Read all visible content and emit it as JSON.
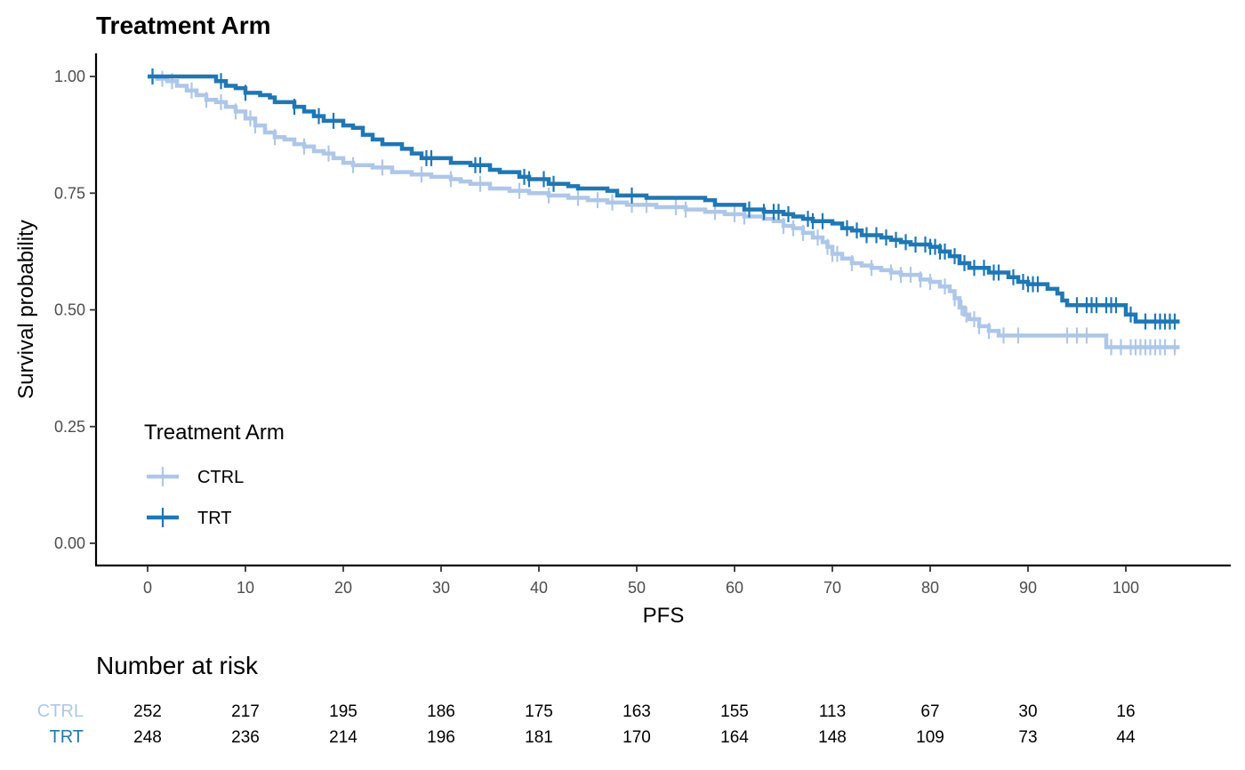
{
  "chart_data": {
    "type": "line",
    "subtype": "kaplan-meier",
    "title": "Treatment Arm",
    "xlabel": "PFS",
    "ylabel": "Survival probability",
    "xlim": [
      -5,
      111
    ],
    "ylim": [
      -0.05,
      1.05
    ],
    "x_ticks": [
      0,
      10,
      20,
      30,
      40,
      50,
      60,
      70,
      80,
      90,
      100
    ],
    "x_tick_labels": [
      "0",
      "10",
      "20",
      "30",
      "40",
      "50",
      "60",
      "70",
      "80",
      "90",
      "100"
    ],
    "y_ticks": [
      0,
      0.25,
      0.5,
      0.75,
      1.0
    ],
    "y_tick_labels": [
      "0.00",
      "0.25",
      "0.50",
      "0.75",
      "1.00"
    ],
    "grid": false,
    "legend": {
      "title": "Treatment Arm",
      "placement": "bottom-left inside plot",
      "entries": [
        "CTRL",
        "TRT"
      ]
    },
    "series": [
      {
        "name": "CTRL",
        "color": "#aec7e8",
        "steps": [
          [
            0,
            1.0
          ],
          [
            1,
            0.995
          ],
          [
            2,
            0.99
          ],
          [
            3,
            0.98
          ],
          [
            4,
            0.97
          ],
          [
            5,
            0.96
          ],
          [
            6,
            0.95
          ],
          [
            7,
            0.945
          ],
          [
            8,
            0.935
          ],
          [
            9,
            0.925
          ],
          [
            10,
            0.91
          ],
          [
            11,
            0.895
          ],
          [
            12,
            0.88
          ],
          [
            13,
            0.87
          ],
          [
            14,
            0.865
          ],
          [
            15,
            0.855
          ],
          [
            16,
            0.85
          ],
          [
            17,
            0.84
          ],
          [
            18,
            0.835
          ],
          [
            19,
            0.825
          ],
          [
            20,
            0.815
          ],
          [
            21,
            0.81
          ],
          [
            23,
            0.805
          ],
          [
            25,
            0.795
          ],
          [
            27,
            0.79
          ],
          [
            29,
            0.785
          ],
          [
            31,
            0.78
          ],
          [
            32,
            0.775
          ],
          [
            33,
            0.77
          ],
          [
            35,
            0.76
          ],
          [
            37,
            0.755
          ],
          [
            39,
            0.75
          ],
          [
            41,
            0.745
          ],
          [
            43,
            0.74
          ],
          [
            45,
            0.735
          ],
          [
            47,
            0.73
          ],
          [
            49,
            0.725
          ],
          [
            52,
            0.72
          ],
          [
            55,
            0.715
          ],
          [
            57,
            0.71
          ],
          [
            59,
            0.705
          ],
          [
            61,
            0.7
          ],
          [
            63,
            0.695
          ],
          [
            64,
            0.69
          ],
          [
            65,
            0.68
          ],
          [
            66,
            0.675
          ],
          [
            67,
            0.665
          ],
          [
            68,
            0.655
          ],
          [
            69,
            0.645
          ],
          [
            69.5,
            0.635
          ],
          [
            70,
            0.62
          ],
          [
            71,
            0.61
          ],
          [
            72,
            0.6
          ],
          [
            73,
            0.595
          ],
          [
            74,
            0.59
          ],
          [
            75,
            0.585
          ],
          [
            76,
            0.58
          ],
          [
            77,
            0.575
          ],
          [
            79,
            0.565
          ],
          [
            80,
            0.56
          ],
          [
            81,
            0.55
          ],
          [
            82,
            0.54
          ],
          [
            82.5,
            0.525
          ],
          [
            83,
            0.505
          ],
          [
            83.5,
            0.49
          ],
          [
            84,
            0.48
          ],
          [
            85,
            0.465
          ],
          [
            86,
            0.455
          ],
          [
            87,
            0.445
          ],
          [
            98,
            0.42
          ],
          [
            105.5,
            0.42
          ]
        ],
        "censored": [
          0.5,
          1.5,
          2.5,
          4.5,
          6,
          7.5,
          9,
          10.5,
          11,
          13,
          16,
          18.5,
          21,
          24,
          28,
          31,
          34,
          38,
          41,
          44,
          46,
          47.5,
          49.5,
          51,
          54,
          55,
          58,
          60,
          61,
          65,
          66,
          67,
          68.5,
          69.5,
          70,
          70.5,
          72,
          74,
          76,
          77,
          78,
          79,
          80,
          81.5,
          82.5,
          83.2,
          83.7,
          84.5,
          85,
          86,
          87.5,
          89,
          94,
          95,
          96,
          98.5,
          99.5,
          100.5,
          101,
          101.5,
          102,
          102.5,
          103,
          103.5,
          104,
          105
        ]
      },
      {
        "name": "TRT",
        "color": "#1f77b4",
        "steps": [
          [
            0,
            1.0
          ],
          [
            7,
            0.99
          ],
          [
            8,
            0.98
          ],
          [
            9,
            0.975
          ],
          [
            10,
            0.965
          ],
          [
            11.5,
            0.96
          ],
          [
            12.5,
            0.955
          ],
          [
            13,
            0.945
          ],
          [
            15,
            0.935
          ],
          [
            16,
            0.925
          ],
          [
            17,
            0.915
          ],
          [
            18,
            0.905
          ],
          [
            20,
            0.895
          ],
          [
            21,
            0.89
          ],
          [
            22,
            0.875
          ],
          [
            23,
            0.865
          ],
          [
            24,
            0.855
          ],
          [
            26,
            0.845
          ],
          [
            27,
            0.835
          ],
          [
            28,
            0.825
          ],
          [
            31,
            0.815
          ],
          [
            33,
            0.81
          ],
          [
            35,
            0.8
          ],
          [
            36,
            0.795
          ],
          [
            38,
            0.785
          ],
          [
            39,
            0.78
          ],
          [
            41,
            0.77
          ],
          [
            43,
            0.765
          ],
          [
            44,
            0.76
          ],
          [
            47,
            0.755
          ],
          [
            48,
            0.745
          ],
          [
            51,
            0.74
          ],
          [
            57,
            0.735
          ],
          [
            58,
            0.725
          ],
          [
            61,
            0.715
          ],
          [
            63,
            0.71
          ],
          [
            65,
            0.705
          ],
          [
            66,
            0.7
          ],
          [
            67,
            0.695
          ],
          [
            68,
            0.69
          ],
          [
            70,
            0.685
          ],
          [
            71,
            0.675
          ],
          [
            72,
            0.67
          ],
          [
            73,
            0.66
          ],
          [
            75,
            0.655
          ],
          [
            76,
            0.65
          ],
          [
            77,
            0.645
          ],
          [
            78,
            0.64
          ],
          [
            80,
            0.635
          ],
          [
            81,
            0.625
          ],
          [
            82,
            0.615
          ],
          [
            83,
            0.6
          ],
          [
            84,
            0.59
          ],
          [
            86,
            0.58
          ],
          [
            88,
            0.57
          ],
          [
            89,
            0.56
          ],
          [
            90,
            0.555
          ],
          [
            92,
            0.545
          ],
          [
            93,
            0.535
          ],
          [
            93.5,
            0.52
          ],
          [
            94,
            0.51
          ],
          [
            100,
            0.49
          ],
          [
            101,
            0.475
          ],
          [
            105.5,
            0.475
          ]
        ],
        "censored": [
          0.5,
          7.5,
          10,
          15,
          17.5,
          19,
          28.5,
          29,
          33.5,
          34,
          38.5,
          39,
          40.5,
          41.5,
          49.5,
          61.5,
          63,
          64,
          64.5,
          65.5,
          67.5,
          68,
          69,
          71.5,
          72.5,
          73.5,
          74.5,
          75.5,
          76.5,
          77.5,
          78.5,
          79.5,
          80,
          80.5,
          81,
          81.5,
          82.5,
          83.5,
          84.5,
          85.5,
          86.5,
          87,
          88.5,
          89.5,
          90,
          90.5,
          91,
          95,
          96,
          96.5,
          97,
          98,
          98.5,
          99,
          100.5,
          102,
          103,
          103.5,
          104,
          104.5,
          105
        ]
      }
    ],
    "risk_table": {
      "title": "Number at risk",
      "times": [
        0,
        10,
        20,
        30,
        40,
        50,
        60,
        70,
        80,
        90,
        100
      ],
      "rows": [
        {
          "name": "CTRL",
          "color": "#aec7e8",
          "values": [
            "252",
            "217",
            "195",
            "186",
            "175",
            "163",
            "155",
            "113",
            "67",
            "30",
            "16"
          ]
        },
        {
          "name": "TRT",
          "color": "#1f77b4",
          "values": [
            "248",
            "236",
            "214",
            "196",
            "181",
            "170",
            "164",
            "148",
            "109",
            "73",
            "44"
          ]
        }
      ]
    }
  }
}
